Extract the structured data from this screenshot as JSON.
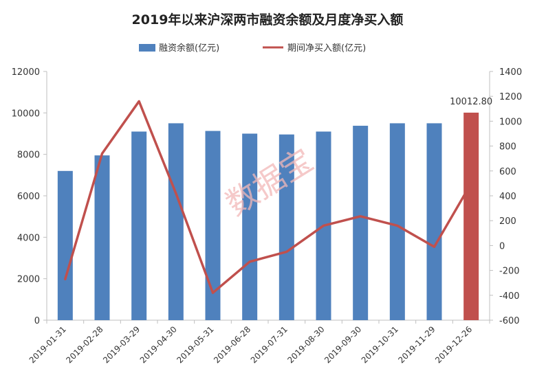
{
  "chart_data": {
    "type": "bar",
    "title": "2019年以来沪深两市融资余额及月度净买入额",
    "categories": [
      "2019-01-31",
      "2019-02-28",
      "2019-03-29",
      "2019-04-30",
      "2019-05-31",
      "2019-06-28",
      "2019-07-31",
      "2019-08-30",
      "2019-09-30",
      "2019-10-31",
      "2019-11-29",
      "2019-12-26"
    ],
    "series": [
      {
        "name": "融资余额(亿元)",
        "type": "bar",
        "axis": "left",
        "color": "#4f81bd",
        "highlight_color": "#c0504d",
        "highlight_index": 11,
        "values": [
          7200,
          7950,
          9100,
          9500,
          9130,
          9000,
          8960,
          9100,
          9380,
          9500,
          9500,
          10012.8
        ]
      },
      {
        "name": "期间净买入额(亿元)",
        "type": "line",
        "axis": "right",
        "color": "#c0504d",
        "values": [
          -270,
          740,
          1160,
          420,
          -380,
          -130,
          -50,
          160,
          235,
          160,
          -10,
          500
        ]
      }
    ],
    "data_labels": [
      {
        "index": 11,
        "text": "10012.80"
      }
    ],
    "ylim_left": [
      0,
      12000
    ],
    "yticks_left": [
      0,
      2000,
      4000,
      6000,
      8000,
      10000,
      12000
    ],
    "ylim_right": [
      -600,
      1400
    ],
    "yticks_right": [
      -600,
      -400,
      -200,
      0,
      200,
      400,
      600,
      800,
      1000,
      1200,
      1400
    ],
    "grid": false,
    "legend_position": "top-center",
    "watermark": "数据宝"
  }
}
